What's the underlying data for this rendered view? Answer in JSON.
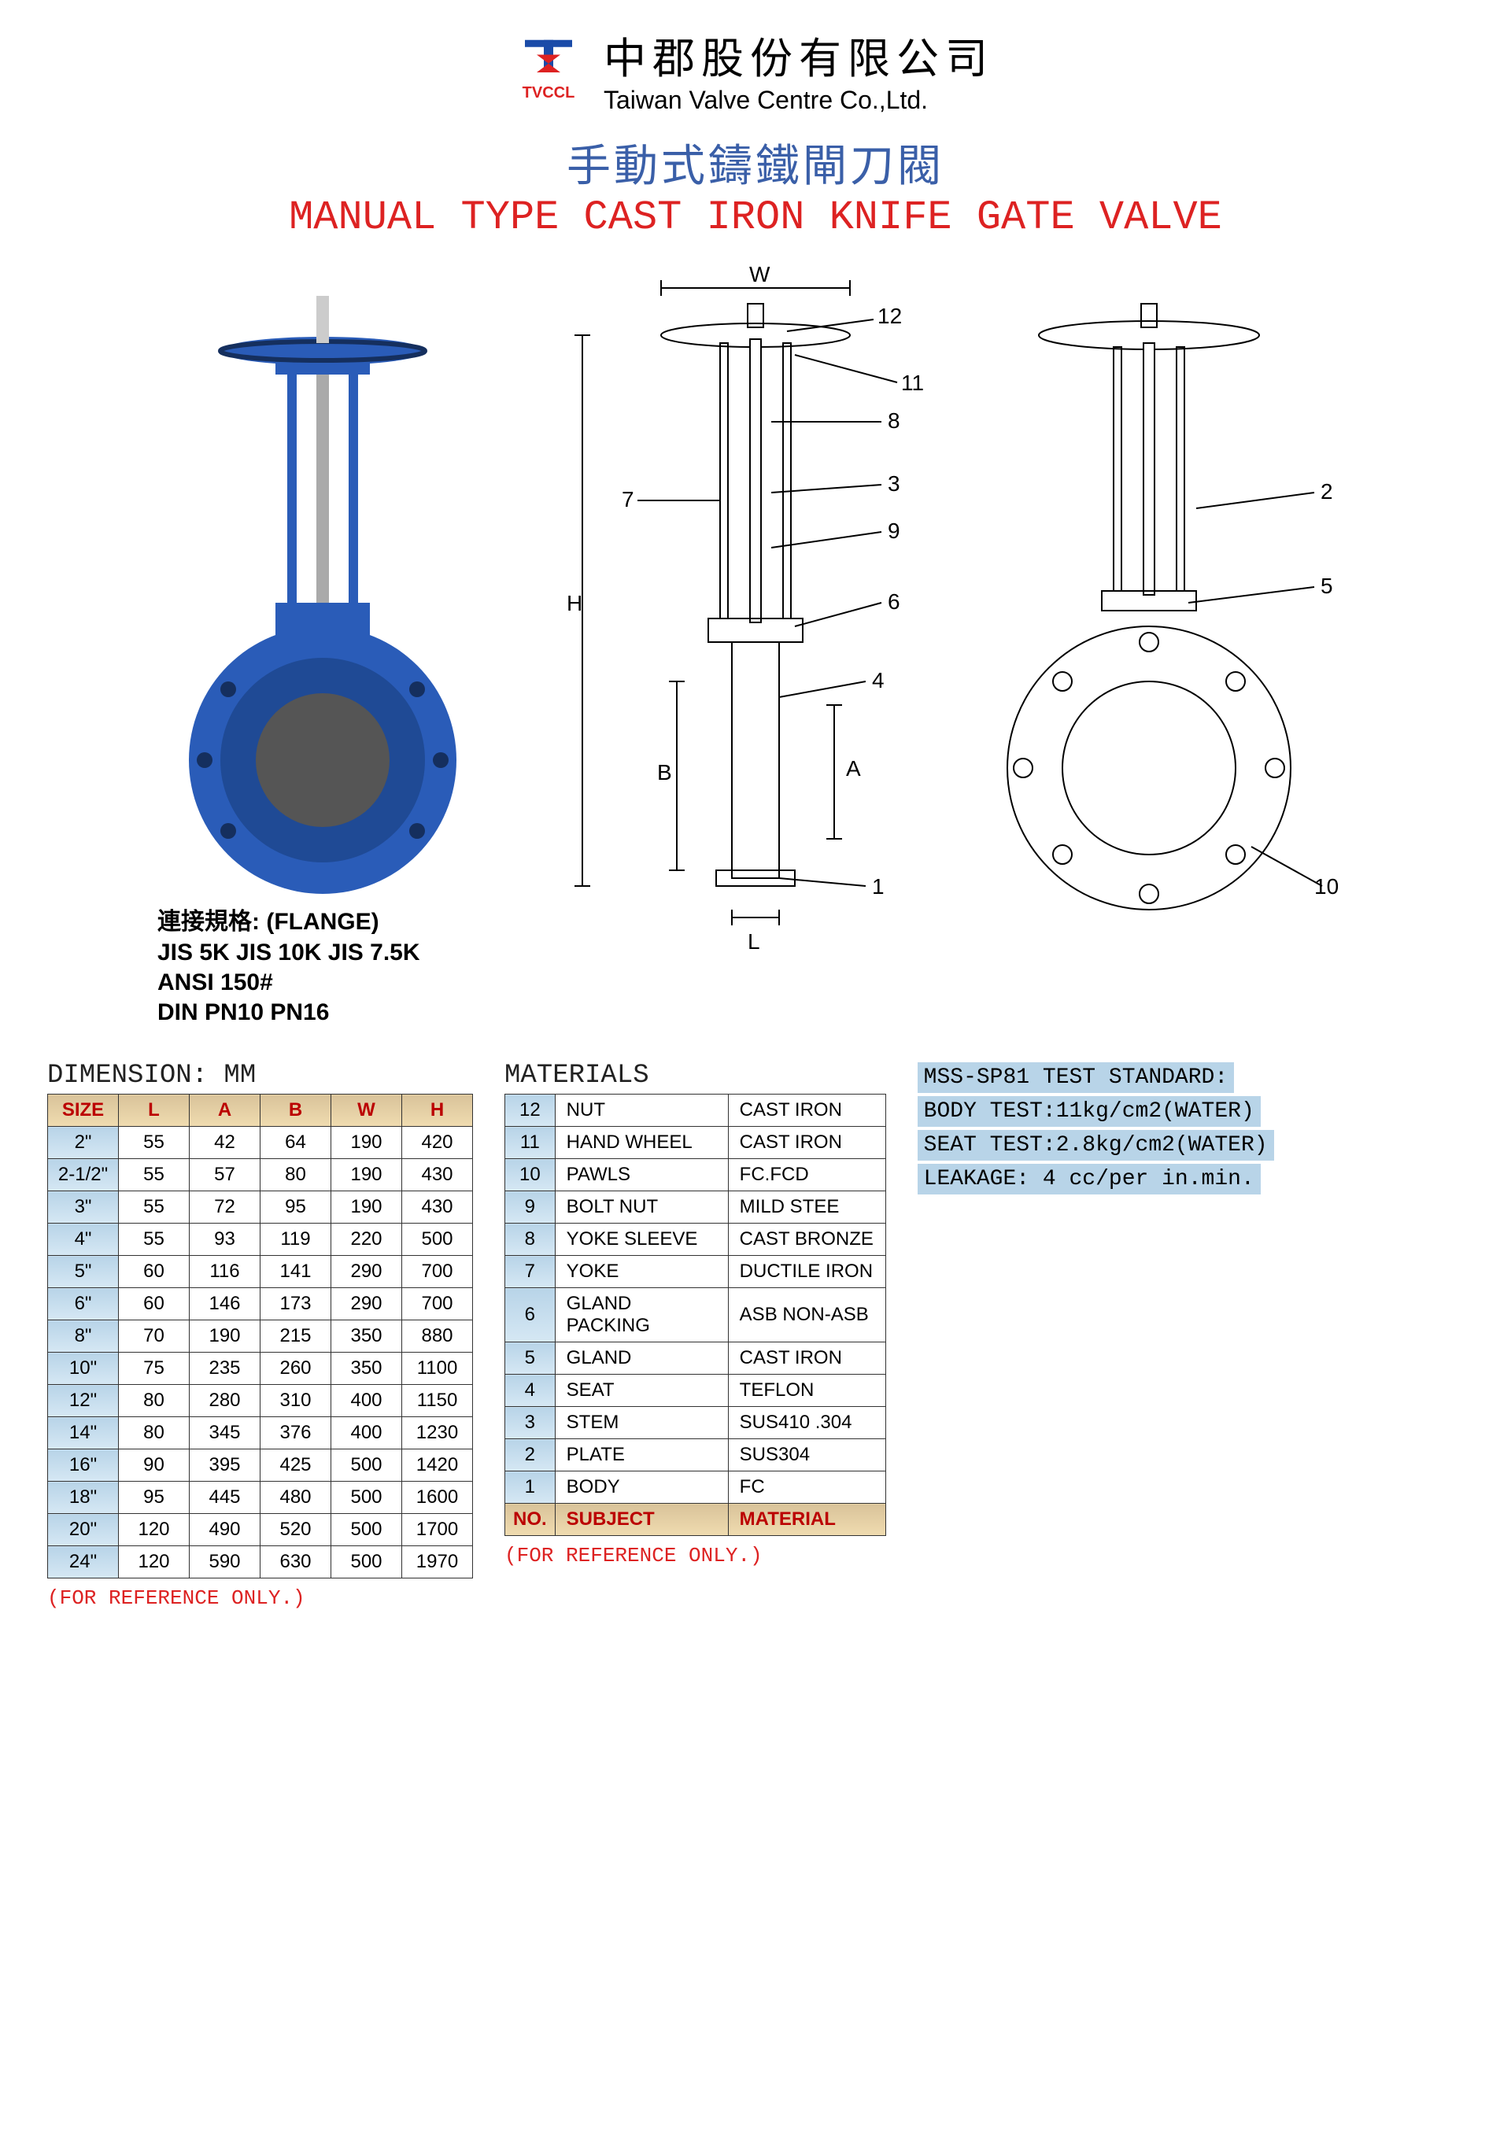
{
  "company": {
    "logo_label": "TVCCL",
    "logo_color": "#1a4ba8",
    "logo_accent": "#d22",
    "name_cn": "中郡股份有限公司",
    "name_en": "Taiwan Valve Centre Co.,Ltd."
  },
  "title": {
    "cn": "手動式鑄鐵閘刀閥",
    "en": "MANUAL TYPE CAST IRON KNIFE GATE VALVE",
    "cn_color": "#3a5fa8",
    "en_color": "#d22"
  },
  "flange_specs": {
    "heading": "連接規格: (FLANGE)",
    "line1": "JIS 5K   JIS 10K   JIS 7.5K",
    "line2": "ANSI 150#",
    "line3": "DIN PN10 PN16"
  },
  "diagram_labels": {
    "W": "W",
    "H": "H",
    "B": "B",
    "A": "A",
    "L": "L",
    "n1": "1",
    "n2": "2",
    "n3": "3",
    "n4": "4",
    "n5": "5",
    "n6": "6",
    "n7": "7",
    "n8": "8",
    "n9": "9",
    "n10": "10",
    "n11": "11",
    "n12": "12"
  },
  "dimension": {
    "title": "DIMENSION: MM",
    "columns": [
      "SIZE",
      "L",
      "A",
      "B",
      "W",
      "H"
    ],
    "rows": [
      [
        "2\"",
        "55",
        "42",
        "64",
        "190",
        "420"
      ],
      [
        "2-1/2\"",
        "55",
        "57",
        "80",
        "190",
        "430"
      ],
      [
        "3\"",
        "55",
        "72",
        "95",
        "190",
        "430"
      ],
      [
        "4\"",
        "55",
        "93",
        "119",
        "220",
        "500"
      ],
      [
        "5\"",
        "60",
        "116",
        "141",
        "290",
        "700"
      ],
      [
        "6\"",
        "60",
        "146",
        "173",
        "290",
        "700"
      ],
      [
        "8\"",
        "70",
        "190",
        "215",
        "350",
        "880"
      ],
      [
        "10\"",
        "75",
        "235",
        "260",
        "350",
        "1100"
      ],
      [
        "12\"",
        "80",
        "280",
        "310",
        "400",
        "1150"
      ],
      [
        "14\"",
        "80",
        "345",
        "376",
        "400",
        "1230"
      ],
      [
        "16\"",
        "90",
        "395",
        "425",
        "500",
        "1420"
      ],
      [
        "18\"",
        "95",
        "445",
        "480",
        "500",
        "1600"
      ],
      [
        "20\"",
        "120",
        "490",
        "520",
        "500",
        "1700"
      ],
      [
        "24\"",
        "120",
        "590",
        "630",
        "500",
        "1970"
      ]
    ],
    "ref_note": "(FOR REFERENCE ONLY.)"
  },
  "materials": {
    "title": "MATERIALS",
    "rows": [
      [
        "12",
        "NUT",
        "CAST IRON"
      ],
      [
        "11",
        "HAND WHEEL",
        "CAST IRON"
      ],
      [
        "10",
        "PAWLS",
        "FC.FCD"
      ],
      [
        "9",
        "BOLT NUT",
        "MILD STEE"
      ],
      [
        "8",
        "YOKE SLEEVE",
        "CAST BRONZE"
      ],
      [
        "7",
        "YOKE",
        "DUCTILE IRON"
      ],
      [
        "6",
        "GLAND PACKING",
        "ASB NON-ASB"
      ],
      [
        "5",
        "GLAND",
        "CAST IRON"
      ],
      [
        "4",
        "SEAT",
        "TEFLON"
      ],
      [
        "3",
        "STEM",
        "SUS410 .304"
      ],
      [
        "2",
        "PLATE",
        "SUS304"
      ],
      [
        "1",
        "BODY",
        "FC"
      ]
    ],
    "header": [
      "NO.",
      "SUBJECT",
      "MATERIAL"
    ],
    "ref_note": "(FOR REFERENCE ONLY.)"
  },
  "test_standard": {
    "line1": "MSS-SP81 TEST STANDARD:",
    "line2": "BODY TEST:11kg/cm2(WATER)",
    "line3": "SEAT TEST:2.8kg/cm2(WATER)",
    "line4": "LEAKAGE: 4 cc/per in.min."
  },
  "colors": {
    "valve_body": "#2a5cb8",
    "header_grad": "#d9c39a",
    "cell_blue": "#b8d4e8"
  }
}
